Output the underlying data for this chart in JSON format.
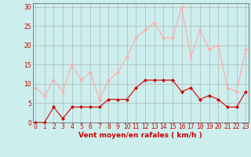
{
  "x": [
    0,
    1,
    2,
    3,
    4,
    5,
    6,
    7,
    8,
    9,
    10,
    11,
    12,
    13,
    14,
    15,
    16,
    17,
    18,
    19,
    20,
    21,
    22,
    23
  ],
  "wind_avg": [
    0,
    0,
    4,
    1,
    4,
    4,
    4,
    4,
    6,
    6,
    6,
    9,
    11,
    11,
    11,
    11,
    8,
    9,
    6,
    7,
    6,
    4,
    4,
    8
  ],
  "wind_gust": [
    9,
    7,
    11,
    8,
    15,
    11,
    13,
    6,
    11,
    13,
    17,
    22,
    24,
    26,
    22,
    22,
    30,
    17,
    24,
    19,
    20,
    9,
    8,
    19
  ],
  "avg_color": "#cc0000",
  "gust_color": "#ffaaaa",
  "bg_color": "#cceeed",
  "grid_color": "#aaaaaa",
  "xlabel": "Vent moyen/en rafales ( km/h )",
  "xlabel_color": "#cc0000",
  "tick_color": "#cc0000",
  "yticks": [
    0,
    5,
    10,
    15,
    20,
    25,
    30
  ],
  "xticks": [
    0,
    1,
    2,
    3,
    4,
    5,
    6,
    7,
    8,
    9,
    10,
    11,
    12,
    13,
    14,
    15,
    16,
    17,
    18,
    19,
    20,
    21,
    22,
    23
  ],
  "ylim": [
    0,
    31
  ],
  "xlim": [
    -0.3,
    23.3
  ],
  "marker": "D",
  "marker_size": 2.5,
  "linewidth": 0.8,
  "tick_fontsize": 5.5,
  "xlabel_fontsize": 6.5
}
